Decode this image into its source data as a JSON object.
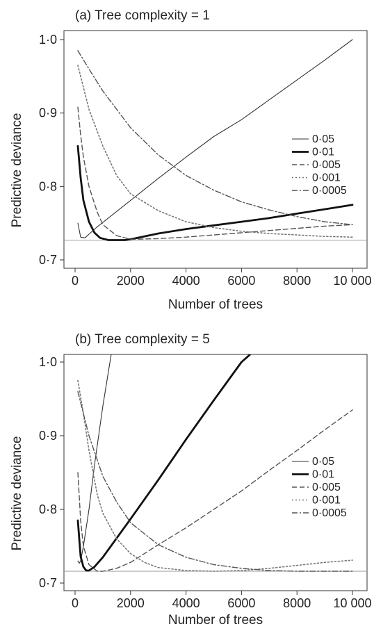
{
  "chart_data": [
    {
      "type": "line",
      "title": "(a) Tree complexity = 1",
      "xlabel": "Number of trees",
      "ylabel": "Predictive deviance",
      "xlim": [
        0,
        10000
      ],
      "ylim": [
        0.69,
        1.01
      ],
      "xticks": [
        0,
        2000,
        4000,
        6000,
        8000,
        10000
      ],
      "xtick_labels": [
        "0",
        "2000",
        "4000",
        "6000",
        "8000",
        "10 000"
      ],
      "yticks": [
        0.7,
        0.8,
        0.9,
        1.0
      ],
      "ytick_labels": [
        "0·7",
        "0·8",
        "0·9",
        "1·0"
      ],
      "reference_line": 0.727,
      "legend_position": "right",
      "series": [
        {
          "name": "0·05",
          "style": "thin-solid",
          "x": [
            100,
            200,
            350,
            500,
            800,
            1000,
            1500,
            2000,
            3000,
            4000,
            5000,
            6000,
            7000,
            8000,
            9000,
            10000
          ],
          "y": [
            0.75,
            0.731,
            0.73,
            0.735,
            0.745,
            0.751,
            0.766,
            0.781,
            0.811,
            0.84,
            0.868,
            0.891,
            0.918,
            0.945,
            0.972,
            1.0
          ]
        },
        {
          "name": "0·01",
          "style": "thick-solid",
          "x": [
            100,
            200,
            300,
            500,
            700,
            900,
            1200,
            1500,
            1800,
            2000,
            3000,
            4000,
            5000,
            6000,
            7000,
            8000,
            9000,
            10000
          ],
          "y": [
            0.855,
            0.812,
            0.781,
            0.752,
            0.737,
            0.73,
            0.727,
            0.727,
            0.727,
            0.728,
            0.736,
            0.742,
            0.747,
            0.752,
            0.757,
            0.763,
            0.769,
            0.775
          ]
        },
        {
          "name": "0·005",
          "style": "dashed",
          "x": [
            100,
            200,
            300,
            500,
            800,
            1000,
            1500,
            2000,
            3000,
            4000,
            5000,
            6000,
            7000,
            8000,
            9000,
            10000
          ],
          "y": [
            0.908,
            0.87,
            0.84,
            0.8,
            0.765,
            0.748,
            0.733,
            0.728,
            0.729,
            0.731,
            0.734,
            0.737,
            0.74,
            0.743,
            0.746,
            0.748
          ]
        },
        {
          "name": "0·001",
          "style": "dotted",
          "x": [
            100,
            300,
            500,
            1000,
            1500,
            2000,
            3000,
            4000,
            5000,
            6000,
            7000,
            8000,
            9000,
            10000
          ],
          "y": [
            0.965,
            0.935,
            0.905,
            0.855,
            0.815,
            0.79,
            0.767,
            0.752,
            0.744,
            0.739,
            0.736,
            0.734,
            0.732,
            0.731
          ]
        },
        {
          "name": "0·0005",
          "style": "dash-dot",
          "x": [
            100,
            500,
            1000,
            2000,
            3000,
            4000,
            5000,
            6000,
            7000,
            8000,
            9000,
            10000
          ],
          "y": [
            0.985,
            0.96,
            0.93,
            0.88,
            0.843,
            0.815,
            0.795,
            0.779,
            0.768,
            0.759,
            0.752,
            0.748
          ]
        }
      ]
    },
    {
      "type": "line",
      "title": "(b) Tree complexity = 5",
      "xlabel": "Number of trees",
      "ylabel": "Predictive deviance",
      "xlim": [
        0,
        10000
      ],
      "ylim": [
        0.69,
        1.01
      ],
      "xticks": [
        0,
        2000,
        4000,
        6000,
        8000,
        10000
      ],
      "xtick_labels": [
        "0",
        "2000",
        "4000",
        "6000",
        "8000",
        "10 000"
      ],
      "yticks": [
        0.7,
        0.8,
        0.9,
        1.0
      ],
      "ytick_labels": [
        "0·7",
        "0·8",
        "0·9",
        "1·0"
      ],
      "reference_line": 0.716,
      "legend_position": "right",
      "series": [
        {
          "name": "0·05",
          "style": "thin-solid",
          "x": [
            100,
            150,
            200,
            300,
            500,
            700,
            1000,
            1300
          ],
          "y": [
            0.73,
            0.727,
            0.73,
            0.75,
            0.8,
            0.86,
            0.94,
            1.01
          ]
        },
        {
          "name": "0·01",
          "style": "thick-solid",
          "x": [
            100,
            150,
            200,
            300,
            400,
            500,
            700,
            1000,
            2000,
            3000,
            4000,
            5000,
            6000,
            6300
          ],
          "y": [
            0.785,
            0.76,
            0.736,
            0.722,
            0.717,
            0.717,
            0.722,
            0.735,
            0.787,
            0.84,
            0.895,
            0.948,
            1.0,
            1.01
          ]
        },
        {
          "name": "0·005",
          "style": "dashed",
          "x": [
            100,
            200,
            300,
            500,
            800,
            1000,
            1500,
            2000,
            3000,
            4000,
            5000,
            6000,
            7000,
            8000,
            9000,
            10000
          ],
          "y": [
            0.85,
            0.785,
            0.75,
            0.725,
            0.716,
            0.716,
            0.72,
            0.728,
            0.752,
            0.775,
            0.8,
            0.825,
            0.853,
            0.88,
            0.908,
            0.935
          ]
        },
        {
          "name": "0·001",
          "style": "dotted",
          "x": [
            100,
            300,
            500,
            800,
            1000,
            1500,
            2000,
            2500,
            3000,
            4000,
            5000,
            6000,
            7000,
            8000,
            9000,
            10000
          ],
          "y": [
            0.975,
            0.93,
            0.88,
            0.82,
            0.795,
            0.76,
            0.74,
            0.728,
            0.721,
            0.717,
            0.716,
            0.717,
            0.72,
            0.724,
            0.728,
            0.731
          ]
        },
        {
          "name": "0·0005",
          "style": "dash-dot",
          "x": [
            100,
            300,
            500,
            1000,
            1500,
            2000,
            3000,
            4000,
            5000,
            6000,
            7000,
            8000,
            9000,
            10000
          ],
          "y": [
            0.96,
            0.93,
            0.9,
            0.845,
            0.81,
            0.782,
            0.752,
            0.735,
            0.725,
            0.72,
            0.717,
            0.716,
            0.716,
            0.716
          ]
        }
      ]
    }
  ]
}
